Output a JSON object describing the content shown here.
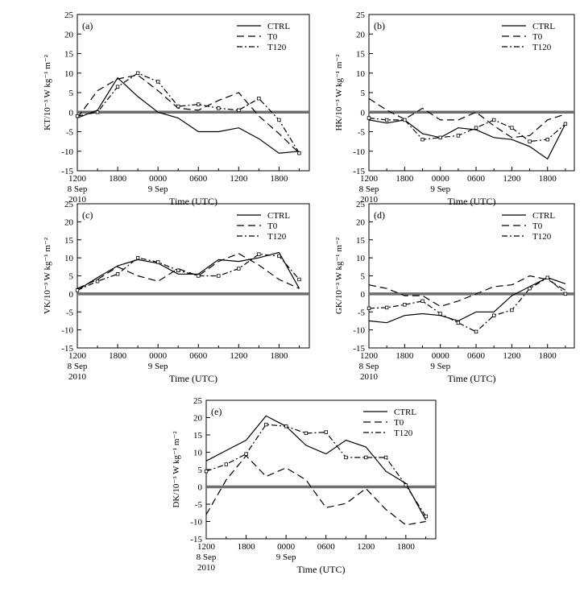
{
  "x_tick_labels": [
    "1200",
    "1800",
    "0000",
    "0600",
    "1200",
    "1800"
  ],
  "x_date_labels": [
    "8 Sep",
    "9 Sep"
  ],
  "x_year_label": "2010",
  "x_axis_label": "Time (UTC)",
  "legend_names": [
    "CTRL",
    "T0",
    "T120"
  ],
  "chart_data": [
    {
      "type": "line",
      "panel_label": "(a)",
      "ylabel": "KT/10⁻³ W kg⁻¹ m⁻²",
      "xlabel": "Time (UTC)",
      "x": [
        "8 Sep 1200",
        "8 Sep 1500",
        "8 Sep 1800",
        "8 Sep 2100",
        "9 Sep 0000",
        "9 Sep 0300",
        "9 Sep 0600",
        "9 Sep 0900",
        "9 Sep 1200",
        "9 Sep 1500",
        "9 Sep 1800",
        "9 Sep 2100"
      ],
      "ylim": [
        -15,
        25
      ],
      "yticks": [
        -15,
        -10,
        -5,
        0,
        5,
        10,
        15,
        20,
        25
      ],
      "legend": "top-right",
      "series": [
        {
          "name": "CTRL",
          "values": [
            -1.5,
            0.5,
            8.8,
            4.0,
            0.0,
            -1.5,
            -5.0,
            -5.0,
            -4.0,
            -6.8,
            -10.5,
            -10.0
          ]
        },
        {
          "name": "T0",
          "values": [
            -1.5,
            5.5,
            8.5,
            9.5,
            5.5,
            1.0,
            0.5,
            3.0,
            5.0,
            -1.0,
            -5.5,
            -10.5
          ]
        },
        {
          "name": "T120",
          "values": [
            -1.0,
            0.0,
            6.5,
            10.0,
            7.8,
            1.5,
            2.0,
            1.0,
            0.5,
            3.5,
            -2.0,
            -10.5
          ]
        }
      ]
    },
    {
      "type": "line",
      "panel_label": "(b)",
      "ylabel": "HK/10⁻³ W kg⁻¹ m⁻²",
      "xlabel": "Time (UTC)",
      "x": [
        "8 Sep 1200",
        "8 Sep 1500",
        "8 Sep 1800",
        "8 Sep 2100",
        "9 Sep 0000",
        "9 Sep 0300",
        "9 Sep 0600",
        "9 Sep 0900",
        "9 Sep 1200",
        "9 Sep 1500",
        "9 Sep 1800",
        "9 Sep 2100"
      ],
      "ylim": [
        -15,
        25
      ],
      "yticks": [
        -15,
        -10,
        -5,
        0,
        5,
        10,
        15,
        20,
        25
      ],
      "legend": "top-right",
      "series": [
        {
          "name": "CTRL",
          "values": [
            -2.0,
            -2.8,
            -2.0,
            -5.5,
            -6.5,
            -4.0,
            -4.5,
            -6.5,
            -7.0,
            -8.8,
            -12.0,
            -3.0
          ]
        },
        {
          "name": "T0",
          "values": [
            3.5,
            0.5,
            -1.8,
            1.0,
            -2.0,
            -2.0,
            0.0,
            -3.5,
            -6.5,
            -6.0,
            -2.0,
            -0.5
          ]
        },
        {
          "name": "T120",
          "values": [
            -1.5,
            -2.0,
            -2.0,
            -7.0,
            -6.5,
            -6.0,
            -4.0,
            -2.0,
            -4.0,
            -7.5,
            -7.0,
            -3.0
          ]
        }
      ]
    },
    {
      "type": "line",
      "panel_label": "(c)",
      "ylabel": "VK/10⁻³ W kg⁻¹ m⁻²",
      "xlabel": "Time (UTC)",
      "x": [
        "8 Sep 1200",
        "8 Sep 1500",
        "8 Sep 1800",
        "8 Sep 2100",
        "9 Sep 0000",
        "9 Sep 0300",
        "9 Sep 0600",
        "9 Sep 0900",
        "9 Sep 1200",
        "9 Sep 1500",
        "9 Sep 1800",
        "9 Sep 2100"
      ],
      "ylim": [
        -15,
        25
      ],
      "yticks": [
        -15,
        -10,
        -5,
        0,
        5,
        10,
        15,
        20,
        25
      ],
      "legend": "top-right",
      "series": [
        {
          "name": "CTRL",
          "values": [
            1.0,
            4.5,
            7.8,
            9.5,
            8.5,
            5.5,
            5.5,
            9.5,
            9.0,
            10.0,
            11.5,
            1.5
          ]
        },
        {
          "name": "T0",
          "values": [
            1.5,
            4.0,
            7.5,
            5.0,
            3.5,
            7.0,
            5.0,
            9.0,
            11.2,
            8.0,
            4.0,
            1.5
          ]
        },
        {
          "name": "T120",
          "values": [
            1.0,
            3.5,
            5.5,
            10.0,
            8.8,
            6.5,
            5.0,
            5.0,
            7.0,
            11.0,
            10.5,
            4.0
          ]
        }
      ]
    },
    {
      "type": "line",
      "panel_label": "(d)",
      "ylabel": "GK/10⁻³ W kg⁻¹ m⁻²",
      "xlabel": "Time (UTC)",
      "x": [
        "8 Sep 1200",
        "8 Sep 1500",
        "8 Sep 1800",
        "8 Sep 2100",
        "9 Sep 0000",
        "9 Sep 0300",
        "9 Sep 0600",
        "9 Sep 0900",
        "9 Sep 1200",
        "9 Sep 1500",
        "9 Sep 1800",
        "9 Sep 2100"
      ],
      "ylim": [
        -15,
        25
      ],
      "yticks": [
        -15,
        -10,
        -5,
        0,
        5,
        10,
        15,
        20,
        25
      ],
      "legend": "top-right",
      "series": [
        {
          "name": "CTRL",
          "values": [
            -7.5,
            -8.0,
            -6.0,
            -5.5,
            -6.0,
            -7.5,
            -5.0,
            -5.0,
            -0.5,
            2.0,
            4.5,
            2.8
          ]
        },
        {
          "name": "T0",
          "values": [
            2.5,
            1.5,
            -0.5,
            -0.5,
            -3.5,
            -2.0,
            0.0,
            2.0,
            2.5,
            5.0,
            4.0,
            1.0
          ]
        },
        {
          "name": "T120",
          "values": [
            -4.0,
            -3.8,
            -3.0,
            -2.0,
            -5.5,
            -8.0,
            -10.5,
            -6.0,
            -4.5,
            1.5,
            4.5,
            0.0
          ]
        }
      ]
    },
    {
      "type": "line",
      "panel_label": "(e)",
      "ylabel": "DK/10⁻³ W kg⁻¹ m⁻²",
      "xlabel": "Time (UTC)",
      "x": [
        "8 Sep 1200",
        "8 Sep 1500",
        "8 Sep 1800",
        "8 Sep 2100",
        "9 Sep 0000",
        "9 Sep 0300",
        "9 Sep 0600",
        "9 Sep 0900",
        "9 Sep 1200",
        "9 Sep 1500",
        "9 Sep 1800",
        "9 Sep 2100"
      ],
      "ylim": [
        -15,
        25
      ],
      "yticks": [
        -15,
        -10,
        -5,
        0,
        5,
        10,
        15,
        20,
        25
      ],
      "legend": "top-right",
      "series": [
        {
          "name": "CTRL",
          "values": [
            7.5,
            10.5,
            13.5,
            20.5,
            17.5,
            12.0,
            9.5,
            13.5,
            11.5,
            4.5,
            1.0,
            -9.5
          ]
        },
        {
          "name": "T0",
          "values": [
            -8.0,
            2.0,
            9.0,
            3.0,
            5.5,
            2.0,
            -6.0,
            -4.8,
            -0.5,
            -6.5,
            -11.0,
            -10.0
          ]
        },
        {
          "name": "T120",
          "values": [
            4.5,
            6.5,
            9.5,
            18.0,
            17.5,
            15.5,
            15.8,
            8.5,
            8.5,
            8.5,
            0.5,
            -8.5
          ]
        }
      ]
    }
  ]
}
